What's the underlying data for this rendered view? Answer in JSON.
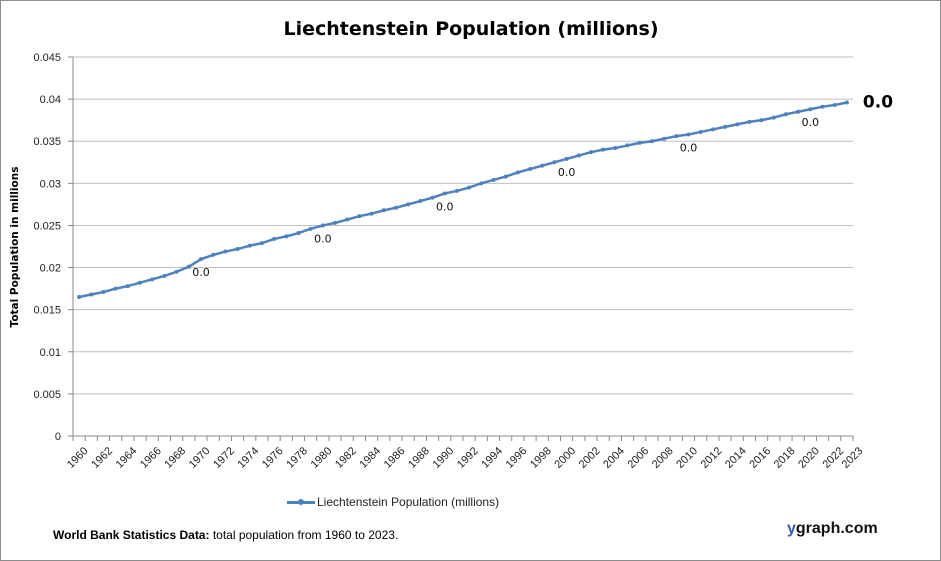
{
  "chart_data": {
    "type": "line",
    "title": "Liechtenstein Population (millions)",
    "xlabel": "",
    "ylabel": "Total Population  in millions",
    "ylim": [
      0,
      0.045
    ],
    "yticks": [
      "0",
      "0.005",
      "0.01",
      "0.015",
      "0.02",
      "0.025",
      "0.03",
      "0.035",
      "0.04",
      "0.045"
    ],
    "grid": true,
    "legend_position": "bottom",
    "series_color": "#4f81bd",
    "x": [
      1960,
      1961,
      1962,
      1963,
      1964,
      1965,
      1966,
      1967,
      1968,
      1969,
      1970,
      1971,
      1972,
      1973,
      1974,
      1975,
      1976,
      1977,
      1978,
      1979,
      1980,
      1981,
      1982,
      1983,
      1984,
      1985,
      1986,
      1987,
      1988,
      1989,
      1990,
      1991,
      1992,
      1993,
      1994,
      1995,
      1996,
      1997,
      1998,
      1999,
      2000,
      2001,
      2002,
      2003,
      2004,
      2005,
      2006,
      2007,
      2008,
      2009,
      2010,
      2011,
      2012,
      2013,
      2014,
      2015,
      2016,
      2017,
      2018,
      2019,
      2020,
      2021,
      2022,
      2023
    ],
    "xtick_labels": [
      "1960",
      "1962",
      "1964",
      "1966",
      "1968",
      "1970",
      "1972",
      "1974",
      "1976",
      "1978",
      "1980",
      "1982",
      "1984",
      "1986",
      "1988",
      "1990",
      "1992",
      "1994",
      "1996",
      "1998",
      "2000",
      "2002",
      "2004",
      "2006",
      "2008",
      "2010",
      "2012",
      "2014",
      "2016",
      "2018",
      "2020",
      "2022",
      "2023"
    ],
    "series": [
      {
        "name": "Liechtenstein Population (millions)",
        "values": [
          0.0165,
          0.0168,
          0.0171,
          0.0175,
          0.0178,
          0.0182,
          0.0186,
          0.019,
          0.0195,
          0.0201,
          0.021,
          0.0215,
          0.0219,
          0.0222,
          0.0226,
          0.0229,
          0.0234,
          0.0237,
          0.0241,
          0.0246,
          0.025,
          0.0253,
          0.0257,
          0.0261,
          0.0264,
          0.0268,
          0.0271,
          0.0275,
          0.0279,
          0.0283,
          0.0288,
          0.0291,
          0.0295,
          0.03,
          0.0304,
          0.0308,
          0.0313,
          0.0317,
          0.0321,
          0.0325,
          0.0329,
          0.0333,
          0.0337,
          0.034,
          0.0342,
          0.0345,
          0.0348,
          0.035,
          0.0353,
          0.0356,
          0.0358,
          0.0361,
          0.0364,
          0.0367,
          0.037,
          0.0373,
          0.0375,
          0.0378,
          0.0382,
          0.0385,
          0.0388,
          0.0391,
          0.0393,
          0.0396
        ]
      }
    ],
    "data_labels": [
      {
        "x": 1970,
        "text": "0.0"
      },
      {
        "x": 1980,
        "text": "0.0"
      },
      {
        "x": 1990,
        "text": "0.0"
      },
      {
        "x": 2000,
        "text": "0.0"
      },
      {
        "x": 2010,
        "text": "0.0"
      },
      {
        "x": 2020,
        "text": "0.0"
      }
    ],
    "end_label": {
      "x": 2023,
      "text": "0.0"
    }
  },
  "footer": {
    "source_bold": "World Bank Statistics Data:",
    "source_text": " total population from 1960 to 2023.",
    "brand_y": "y",
    "brand_rest": "graph.com"
  }
}
